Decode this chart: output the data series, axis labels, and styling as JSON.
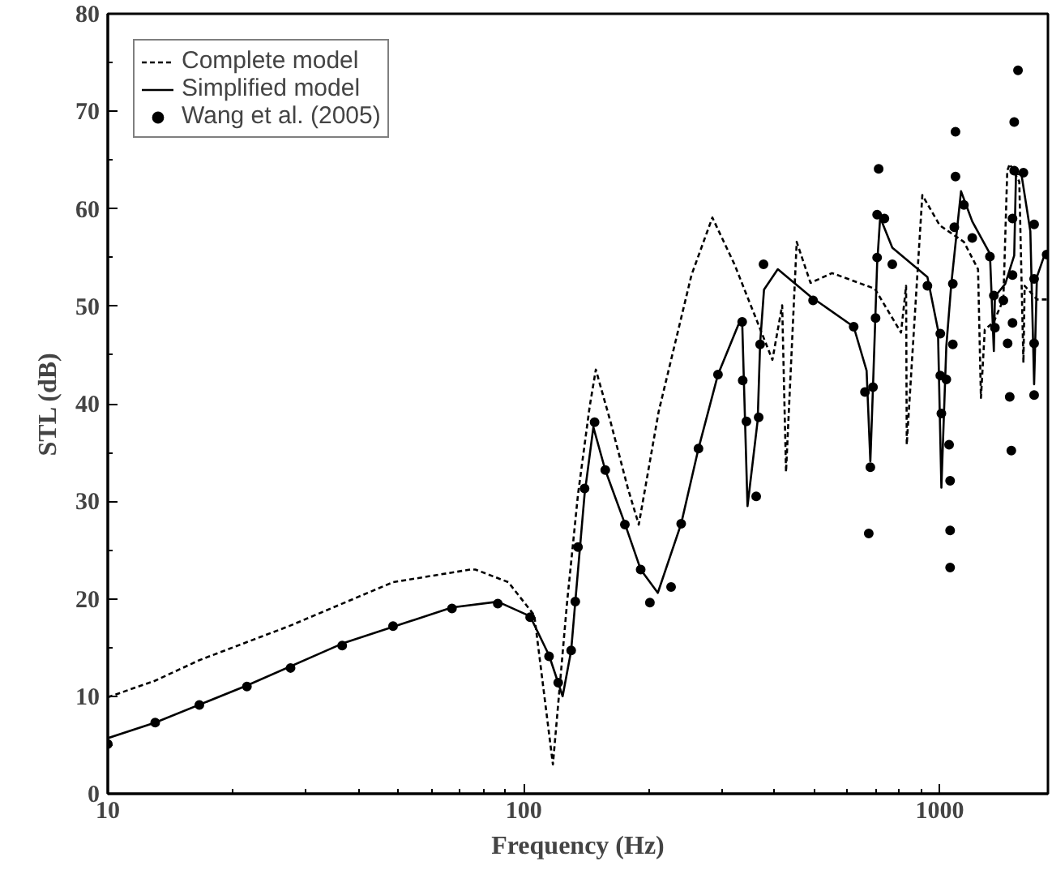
{
  "chart_data": {
    "type": "line",
    "xlabel": "Frequency (Hz)",
    "ylabel": "STL (dB)",
    "log": "x",
    "xlim": [
      10,
      1820
    ],
    "ylim": [
      0,
      80
    ],
    "xticks": [
      10,
      {
        "value": 20,
        "label": null
      },
      {
        "value": 30,
        "label": null
      },
      {
        "value": 40,
        "label": null
      },
      {
        "value": 50,
        "label": null
      },
      {
        "value": 60,
        "label": null
      },
      {
        "value": 70,
        "label": null
      },
      {
        "value": 80,
        "label": null
      },
      {
        "value": 90,
        "label": null
      },
      100,
      {
        "value": 200,
        "label": null
      },
      {
        "value": 300,
        "label": null
      },
      {
        "value": 400,
        "label": null
      },
      {
        "value": 500,
        "label": null
      },
      {
        "value": 600,
        "label": null
      },
      {
        "value": 700,
        "label": null
      },
      {
        "value": 800,
        "label": null
      },
      {
        "value": 900,
        "label": null
      },
      1000
    ],
    "yticks": [
      0,
      {
        "value": 5,
        "label": null
      },
      10,
      {
        "value": 15,
        "label": null
      },
      20,
      {
        "value": 25,
        "label": null
      },
      30,
      {
        "value": 35,
        "label": null
      },
      40,
      {
        "value": 45,
        "label": null
      },
      50,
      {
        "value": 55,
        "label": null
      },
      60,
      {
        "value": 65,
        "label": null
      },
      70,
      {
        "value": 75,
        "label": null
      },
      80
    ],
    "legend": "top left",
    "grid": false,
    "series": [
      {
        "name": "Complete model",
        "line_style": "dashed",
        "color": "#000000",
        "x": [
          10,
          13,
          16.6,
          27.3,
          48.5,
          74.5,
          76.5,
          91.8,
          106,
          117.5,
          127,
          135,
          144,
          149,
          162,
          178,
          189,
          211,
          253,
          284,
          321,
          396,
          418,
          427,
          453,
          489,
          551,
          698,
          807,
          830,
          833,
          908,
          1000,
          1143,
          1236,
          1256,
          1283,
          1349,
          1422,
          1453,
          1473,
          1553,
          1589,
          1600,
          1712,
          1820
        ],
        "values": [
          9.9,
          11.6,
          13.7,
          17.2,
          21.7,
          23.0,
          23.0,
          21.7,
          18.3,
          3.0,
          19.5,
          30.7,
          39.7,
          43.5,
          38.0,
          31.3,
          27.6,
          39.2,
          53.2,
          59.1,
          54.3,
          44.5,
          50.1,
          33.0,
          56.6,
          52.4,
          53.4,
          51.8,
          47.3,
          52.1,
          35.8,
          61.4,
          58.3,
          56.6,
          53.8,
          40.6,
          47.6,
          48.4,
          50.7,
          63.9,
          64.6,
          62.8,
          44.2,
          52.1,
          50.7,
          50.7
        ]
      },
      {
        "name": "Simplified model",
        "line_style": "solid",
        "color": "#000000",
        "x": [
          10,
          13,
          21.6,
          36.6,
          67.2,
          86.6,
          103.6,
          115,
          124,
          130,
          133,
          140,
          147,
          157,
          175,
          191,
          210,
          239,
          263,
          293,
          328,
          335,
          345,
          365,
          370,
          378,
          408,
          489,
          621,
          667,
          681,
          691,
          707,
          719,
          769,
          934,
          990,
          1009,
          1037,
          1066,
          1125,
          1197,
          1320,
          1349,
          1357,
          1437,
          1510,
          1525,
          1572,
          1651,
          1686,
          1712,
          1790,
          1820
        ],
        "values": [
          5.7,
          7.3,
          11.1,
          15.4,
          19.1,
          19.7,
          18.2,
          14.2,
          10.0,
          14.7,
          19.7,
          30.7,
          37.6,
          33.2,
          27.7,
          23.0,
          20.6,
          27.7,
          35.4,
          43.0,
          48.1,
          48.4,
          29.5,
          38.3,
          46.2,
          51.7,
          53.8,
          51.0,
          47.9,
          43.4,
          34.1,
          41.7,
          54.3,
          59.1,
          56.0,
          53.0,
          47.6,
          31.4,
          45.9,
          52.3,
          61.8,
          58.7,
          55.4,
          45.4,
          51.0,
          52.3,
          55.2,
          63.6,
          63.5,
          57.7,
          42.0,
          53.0,
          55.4,
          55.7
        ]
      },
      {
        "name": "Wang et al. (2005)",
        "type": "scatter",
        "marker": "circle",
        "color": "#000000",
        "x": [
          10,
          13,
          16.6,
          21.6,
          27.5,
          36.6,
          48.5,
          67.2,
          86.6,
          103.6,
          115,
          121,
          130,
          133,
          135,
          140,
          148,
          157,
          175,
          191,
          201,
          226,
          239,
          263,
          293,
          335,
          336,
          343,
          367,
          362,
          370,
          377,
          496,
          621,
          661,
          691,
          681,
          675,
          701,
          707,
          707,
          713,
          736,
          769,
          934,
          1003,
          1003,
          1037,
          1009,
          1053,
          1059,
          1059,
          1059,
          1075,
          1075,
          1084,
          1091,
          1091,
          1143,
          1197,
          1320,
          1349,
          1357,
          1422,
          1456,
          1473,
          1486,
          1496,
          1496,
          1496,
          1510,
          1510,
          1542,
          1589,
          1686,
          1686,
          1686,
          1686,
          1807
        ],
        "values": [
          5.1,
          7.3,
          9.1,
          11.0,
          12.9,
          15.2,
          17.2,
          19.0,
          19.5,
          18.1,
          14.1,
          11.4,
          14.7,
          19.7,
          25.3,
          31.3,
          38.1,
          33.2,
          27.6,
          23.0,
          19.6,
          21.2,
          27.7,
          35.4,
          43.0,
          48.4,
          42.4,
          38.2,
          38.6,
          30.5,
          46.1,
          54.3,
          50.6,
          47.9,
          41.2,
          41.7,
          33.5,
          26.7,
          48.8,
          55.0,
          59.4,
          64.1,
          59.0,
          54.3,
          52.1,
          47.2,
          42.9,
          42.5,
          39.0,
          35.8,
          32.1,
          27.0,
          23.2,
          46.1,
          52.3,
          58.1,
          63.3,
          67.9,
          60.4,
          57.0,
          55.1,
          51.1,
          47.8,
          50.6,
          46.2,
          40.7,
          35.2,
          48.3,
          53.2,
          59.0,
          63.9,
          68.9,
          74.2,
          63.7,
          58.4,
          52.8,
          46.2,
          40.9,
          55.3
        ]
      }
    ]
  }
}
